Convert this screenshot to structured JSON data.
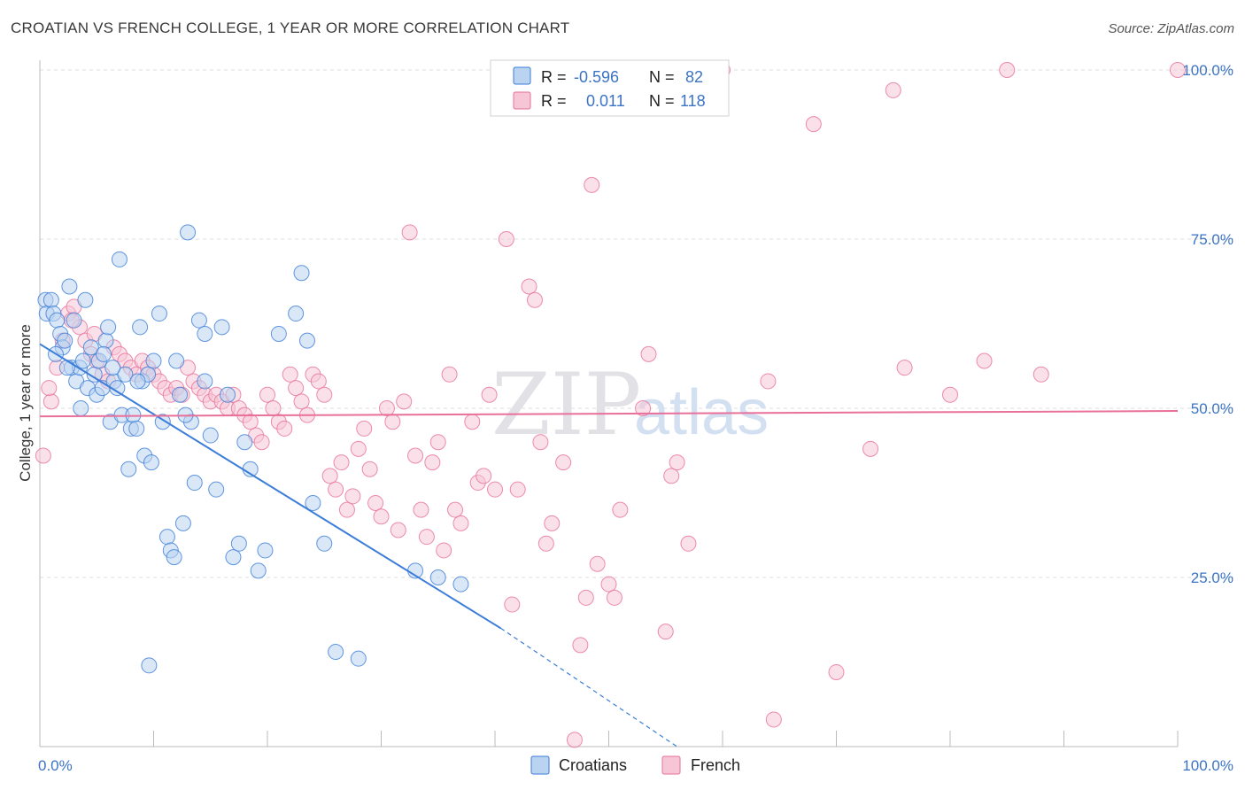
{
  "title": "CROATIAN VS FRENCH COLLEGE, 1 YEAR OR MORE CORRELATION CHART",
  "source": "Source: ZipAtlas.com",
  "watermark": {
    "zip": "ZIP",
    "atlas": "atlas"
  },
  "colors": {
    "croatians": "#3b7dd8",
    "croatians_fill": "#b9d3f1",
    "french": "#e8709a",
    "french_fill": "#f6c6d6",
    "grid": "#dcdcdc",
    "tick_text": "#3b73c4"
  },
  "legend_box": {
    "rows": [
      {
        "series": "croatians",
        "r_label": "R =",
        "r_value": "-0.596",
        "n_label": "N =",
        "n_value": "82"
      },
      {
        "series": "french",
        "r_label": "R =",
        "r_value": "0.011",
        "n_label": "N =",
        "n_value": "118"
      }
    ]
  },
  "bottom_legend": [
    {
      "series": "croatians",
      "label": "Croatians"
    },
    {
      "series": "french",
      "label": "French"
    }
  ],
  "chart_data": {
    "type": "scatter",
    "xlabel": "",
    "ylabel": "College, 1 year or more",
    "x_tick_labels": [
      "0.0%",
      "100.0%"
    ],
    "y_tick_labels": [
      "25.0%",
      "50.0%",
      "75.0%",
      "100.0%"
    ],
    "y_gridlines": [
      25,
      50,
      75,
      100
    ],
    "xlim": [
      0,
      100
    ],
    "ylim": [
      0,
      100
    ],
    "grid": true,
    "legend_position": "top-center",
    "series": [
      {
        "name": "Croatians",
        "r": -0.596,
        "n": 82,
        "trend": {
          "x": [
            0,
            40.5
          ],
          "y": [
            59.5,
            17.5
          ],
          "dashed_to": [
            56,
            0
          ]
        },
        "points": [
          [
            0.5,
            66
          ],
          [
            0.6,
            64
          ],
          [
            1.0,
            66
          ],
          [
            1.2,
            64
          ],
          [
            1.5,
            63
          ],
          [
            1.8,
            61
          ],
          [
            2.0,
            59
          ],
          [
            2.2,
            60
          ],
          [
            2.6,
            68
          ],
          [
            2.8,
            56
          ],
          [
            3.0,
            63
          ],
          [
            3.2,
            54
          ],
          [
            3.5,
            56
          ],
          [
            3.8,
            57
          ],
          [
            4.0,
            66
          ],
          [
            4.2,
            53
          ],
          [
            4.5,
            59
          ],
          [
            4.8,
            55
          ],
          [
            5.0,
            52
          ],
          [
            5.2,
            57
          ],
          [
            5.5,
            53
          ],
          [
            5.8,
            60
          ],
          [
            6.0,
            62
          ],
          [
            6.2,
            48
          ],
          [
            6.5,
            54
          ],
          [
            6.8,
            53
          ],
          [
            7.0,
            72
          ],
          [
            7.2,
            49
          ],
          [
            7.5,
            55
          ],
          [
            7.8,
            41
          ],
          [
            8.0,
            47
          ],
          [
            8.2,
            49
          ],
          [
            8.5,
            47
          ],
          [
            8.8,
            62
          ],
          [
            9.0,
            54
          ],
          [
            9.2,
            43
          ],
          [
            9.5,
            55
          ],
          [
            9.8,
            42
          ],
          [
            10.0,
            57
          ],
          [
            10.5,
            64
          ],
          [
            10.8,
            48
          ],
          [
            11.2,
            31
          ],
          [
            11.5,
            29
          ],
          [
            11.8,
            28
          ],
          [
            12.0,
            57
          ],
          [
            12.3,
            52
          ],
          [
            12.6,
            33
          ],
          [
            13.0,
            76
          ],
          [
            13.3,
            48
          ],
          [
            13.6,
            39
          ],
          [
            14.0,
            63
          ],
          [
            14.5,
            61
          ],
          [
            15.0,
            46
          ],
          [
            15.5,
            38
          ],
          [
            16.0,
            62
          ],
          [
            16.5,
            52
          ],
          [
            17.0,
            28
          ],
          [
            17.5,
            30
          ],
          [
            18.0,
            45
          ],
          [
            18.5,
            41
          ],
          [
            19.2,
            26
          ],
          [
            19.8,
            29
          ],
          [
            21.0,
            61
          ],
          [
            22.5,
            64
          ],
          [
            23.0,
            70
          ],
          [
            23.5,
            60
          ],
          [
            24.0,
            36
          ],
          [
            25.0,
            30
          ],
          [
            26.0,
            14
          ],
          [
            28.0,
            13
          ],
          [
            33.0,
            26
          ],
          [
            35.0,
            25
          ],
          [
            37.0,
            24
          ],
          [
            1.4,
            58
          ],
          [
            2.4,
            56
          ],
          [
            3.6,
            50
          ],
          [
            5.6,
            58
          ],
          [
            6.4,
            56
          ],
          [
            8.6,
            54
          ],
          [
            9.6,
            12
          ],
          [
            14.5,
            54
          ],
          [
            12.8,
            49
          ]
        ]
      },
      {
        "name": "French",
        "r": 0.011,
        "n": 118,
        "trend": {
          "x": [
            0,
            100
          ],
          "y": [
            48.8,
            49.6
          ]
        },
        "points": [
          [
            0.3,
            43
          ],
          [
            1.0,
            51
          ],
          [
            1.5,
            56
          ],
          [
            2.0,
            60
          ],
          [
            2.5,
            64
          ],
          [
            3.0,
            65
          ],
          [
            3.5,
            62
          ],
          [
            4.0,
            60
          ],
          [
            4.5,
            58
          ],
          [
            5.0,
            57
          ],
          [
            5.5,
            55
          ],
          [
            6.0,
            54
          ],
          [
            6.5,
            59
          ],
          [
            7.0,
            58
          ],
          [
            7.5,
            57
          ],
          [
            8.0,
            56
          ],
          [
            8.5,
            55
          ],
          [
            9.0,
            57
          ],
          [
            9.5,
            56
          ],
          [
            10.0,
            55
          ],
          [
            10.5,
            54
          ],
          [
            11.0,
            53
          ],
          [
            11.5,
            52
          ],
          [
            12.0,
            53
          ],
          [
            12.5,
            52
          ],
          [
            13.0,
            56
          ],
          [
            13.5,
            54
          ],
          [
            14.0,
            53
          ],
          [
            14.5,
            52
          ],
          [
            15.0,
            51
          ],
          [
            15.5,
            52
          ],
          [
            16.0,
            51
          ],
          [
            16.5,
            50
          ],
          [
            17.0,
            52
          ],
          [
            17.5,
            50
          ],
          [
            18.0,
            49
          ],
          [
            18.5,
            48
          ],
          [
            19.0,
            46
          ],
          [
            19.5,
            45
          ],
          [
            20.0,
            52
          ],
          [
            20.5,
            50
          ],
          [
            21.0,
            48
          ],
          [
            21.5,
            47
          ],
          [
            22.0,
            55
          ],
          [
            22.5,
            53
          ],
          [
            23.0,
            51
          ],
          [
            23.5,
            49
          ],
          [
            24.0,
            55
          ],
          [
            24.5,
            54
          ],
          [
            25.0,
            52
          ],
          [
            25.5,
            40
          ],
          [
            26.0,
            38
          ],
          [
            26.5,
            42
          ],
          [
            27.0,
            35
          ],
          [
            27.5,
            37
          ],
          [
            28.0,
            44
          ],
          [
            28.5,
            47
          ],
          [
            29.0,
            41
          ],
          [
            29.5,
            36
          ],
          [
            30.0,
            34
          ],
          [
            30.5,
            50
          ],
          [
            31.0,
            48
          ],
          [
            31.5,
            32
          ],
          [
            32.0,
            51
          ],
          [
            32.5,
            76
          ],
          [
            33.0,
            43
          ],
          [
            33.5,
            35
          ],
          [
            34.0,
            31
          ],
          [
            34.5,
            42
          ],
          [
            35.0,
            45
          ],
          [
            35.5,
            29
          ],
          [
            36.0,
            55
          ],
          [
            36.5,
            35
          ],
          [
            37.0,
            33
          ],
          [
            38.0,
            48
          ],
          [
            38.5,
            39
          ],
          [
            39.0,
            40
          ],
          [
            39.5,
            52
          ],
          [
            40.0,
            38
          ],
          [
            41.0,
            75
          ],
          [
            41.5,
            21
          ],
          [
            42.0,
            38
          ],
          [
            43.0,
            68
          ],
          [
            43.5,
            66
          ],
          [
            44.0,
            45
          ],
          [
            44.5,
            30
          ],
          [
            45.0,
            33
          ],
          [
            46.0,
            42
          ],
          [
            47.0,
            1
          ],
          [
            47.5,
            15
          ],
          [
            48.0,
            22
          ],
          [
            48.5,
            83
          ],
          [
            49.0,
            27
          ],
          [
            50.0,
            24
          ],
          [
            50.5,
            22
          ],
          [
            51.0,
            35
          ],
          [
            53.0,
            50
          ],
          [
            53.5,
            58
          ],
          [
            55.0,
            17
          ],
          [
            55.5,
            40
          ],
          [
            56.0,
            42
          ],
          [
            57.0,
            30
          ],
          [
            60.0,
            100
          ],
          [
            64.0,
            54
          ],
          [
            64.5,
            4
          ],
          [
            68.0,
            92
          ],
          [
            70.0,
            11
          ],
          [
            73.0,
            44
          ],
          [
            75.0,
            97
          ],
          [
            76.0,
            56
          ],
          [
            80.0,
            52
          ],
          [
            83.0,
            57
          ],
          [
            85.0,
            100
          ],
          [
            88.0,
            55
          ],
          [
            100.0,
            100
          ],
          [
            0.8,
            53
          ],
          [
            2.8,
            63
          ],
          [
            4.8,
            61
          ]
        ]
      }
    ]
  }
}
